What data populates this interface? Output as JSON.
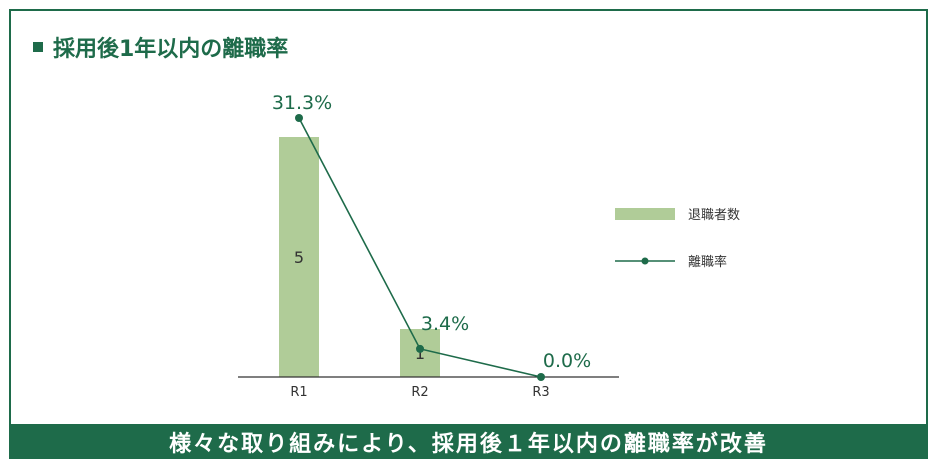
{
  "title": "採用後1年以内の離職率",
  "banner": "様々な取り組みにより、採用後１年以内の離職率が改善",
  "colors": {
    "accent": "#1e6b4a",
    "bar": "#b0cc98",
    "line": "#1e6b4a"
  },
  "chart_data": {
    "type": "bar",
    "categories": [
      "R1",
      "R2",
      "R3"
    ],
    "series": [
      {
        "name": "退職者数",
        "type": "bar",
        "values": [
          5,
          1,
          0
        ],
        "labels": [
          "5",
          "1",
          ""
        ]
      },
      {
        "name": "離職率",
        "type": "line",
        "values": [
          31.3,
          3.4,
          0.0
        ],
        "labels": [
          "31.3%",
          "3.4%",
          "0.0%"
        ]
      }
    ],
    "title": "採用後1年以内の離職率",
    "legend": [
      "退職者数",
      "離職率"
    ],
    "legend_position": "right"
  }
}
